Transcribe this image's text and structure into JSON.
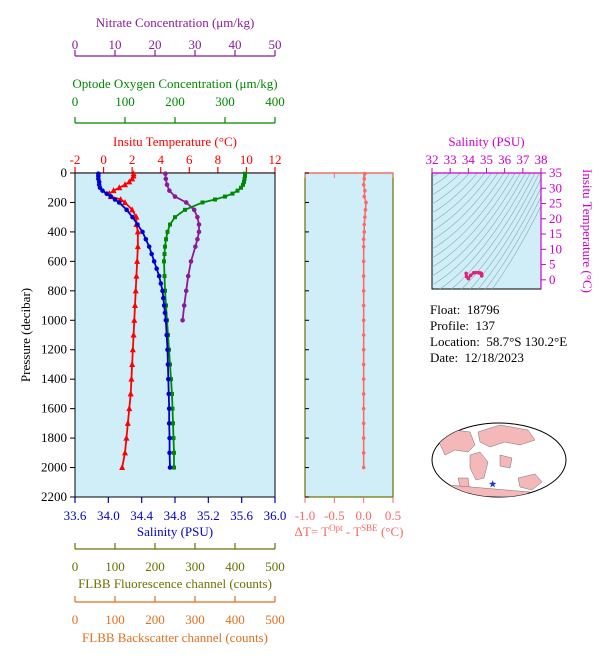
{
  "info": {
    "float_label": "Float:",
    "float_value": "18796",
    "profile_label": "Profile:",
    "profile_value": "137",
    "location_label": "Location:",
    "location_value": "58.7°S  130.2°E",
    "date_label": "Date:",
    "date_value": "12/18/2023"
  },
  "colors": {
    "temperature": "#ff0000",
    "salinity": "#0000cc",
    "oxygen": "#008800",
    "nitrate": "#8b1a9b",
    "deltaT": "#ff6666",
    "fluorescence": "#6b7000",
    "backscatter": "#e07020",
    "ts_axis": "#cc00cc",
    "panel_bg": "#cfeef8"
  },
  "chart_data": [
    {
      "type": "line",
      "panel": "profiles",
      "ylabel": "Pressure (decibar)",
      "ylim": [
        2200,
        0
      ],
      "yticks": [
        0,
        200,
        400,
        600,
        800,
        1000,
        1200,
        1400,
        1600,
        1800,
        2000,
        2200
      ],
      "axes": {
        "temperature": {
          "label": "Insitu Temperature (°C)",
          "range": [
            -2,
            12
          ],
          "ticks": [
            -2,
            0,
            2,
            4,
            6,
            8,
            10,
            12
          ]
        },
        "salinity": {
          "label": "Salinity (PSU)",
          "range": [
            33.6,
            36.0
          ],
          "ticks": [
            "33.6",
            "34.0",
            "34.4",
            "34.8",
            "35.2",
            "35.6",
            "36.0"
          ]
        },
        "oxygen": {
          "label": "Optode Oxygen Concentration (μm/kg)",
          "range": [
            0,
            400
          ],
          "ticks": [
            0,
            100,
            200,
            300,
            400
          ]
        },
        "nitrate": {
          "label": "Nitrate Concentration (μm/kg)",
          "range": [
            0,
            50
          ],
          "ticks": [
            0,
            10,
            20,
            30,
            40,
            50
          ]
        },
        "fluorescence": {
          "label": "FLBB Fluorescence channel (counts)",
          "range": [
            0,
            500
          ],
          "ticks": [
            0,
            100,
            200,
            300,
            400,
            500
          ]
        },
        "backscatter": {
          "label": "FLBB Backscatter channel (counts)",
          "range": [
            0,
            500
          ],
          "ticks": [
            0,
            100,
            200,
            300,
            400,
            500
          ]
        }
      },
      "series": [
        {
          "name": "temperature",
          "axis": "temperature",
          "pressure": [
            5,
            20,
            40,
            60,
            80,
            100,
            120,
            140,
            160,
            180,
            200,
            250,
            300,
            350,
            400,
            500,
            600,
            700,
            800,
            900,
            1000,
            1100,
            1200,
            1300,
            1400,
            1500,
            1600,
            1700,
            1800,
            1900,
            2000
          ],
          "values": [
            2.1,
            2.1,
            2.0,
            1.8,
            1.5,
            1.1,
            0.7,
            0.4,
            0.5,
            1.2,
            1.5,
            2.0,
            2.3,
            2.3,
            2.4,
            2.4,
            2.35,
            2.3,
            2.25,
            2.2,
            2.15,
            2.1,
            2.05,
            2.0,
            1.95,
            1.9,
            1.8,
            1.7,
            1.6,
            1.5,
            1.3
          ]
        },
        {
          "name": "salinity",
          "axis": "salinity",
          "pressure": [
            5,
            20,
            40,
            60,
            80,
            100,
            120,
            140,
            160,
            180,
            200,
            250,
            300,
            350,
            400,
            450,
            500,
            550,
            600,
            650,
            700,
            750,
            800,
            850,
            900,
            950,
            1000,
            1100,
            1200,
            1300,
            1400,
            1500,
            1600,
            1700,
            1800,
            1900,
            2000
          ],
          "values": [
            33.88,
            33.88,
            33.88,
            33.89,
            33.89,
            33.9,
            33.93,
            33.98,
            34.03,
            34.08,
            34.13,
            34.22,
            34.29,
            34.35,
            34.41,
            34.45,
            34.49,
            34.52,
            34.55,
            34.58,
            34.61,
            34.63,
            34.65,
            34.66,
            34.67,
            34.68,
            34.69,
            34.7,
            34.71,
            34.715,
            34.72,
            34.725,
            34.73,
            34.73,
            34.735,
            34.735,
            34.74
          ]
        },
        {
          "name": "oxygen",
          "axis": "oxygen",
          "pressure": [
            5,
            20,
            40,
            60,
            80,
            100,
            120,
            140,
            160,
            180,
            200,
            250,
            300,
            350,
            400,
            450,
            500,
            550,
            600,
            700,
            800,
            900,
            1000,
            1100,
            1200,
            1300,
            1400,
            1500,
            1600,
            1700,
            1800,
            1900,
            2000
          ],
          "values": [
            340,
            340,
            339,
            338,
            336,
            332,
            325,
            315,
            300,
            280,
            255,
            220,
            200,
            190,
            185,
            182,
            180,
            179,
            178,
            179,
            180,
            182,
            184,
            186,
            188,
            190,
            192,
            194,
            195,
            196,
            197,
            198,
            198
          ]
        },
        {
          "name": "nitrate",
          "axis": "nitrate",
          "pressure": [
            5,
            40,
            80,
            120,
            160,
            200,
            250,
            300,
            350,
            400,
            450,
            500,
            600,
            700,
            800,
            900,
            1000
          ],
          "values": [
            22.6,
            22.7,
            23.0,
            23.6,
            25.0,
            27.8,
            29.8,
            30.6,
            31.0,
            31.0,
            30.6,
            30.1,
            29.0,
            28.3,
            27.8,
            27.3,
            26.9
          ]
        },
        {
          "name": "deltaT",
          "axis": "deltaT",
          "pressure": [
            5,
            40,
            80,
            120,
            160,
            200,
            250,
            300,
            350,
            400,
            450,
            500,
            600,
            700,
            800,
            900,
            1000,
            1100,
            1200,
            1300,
            1400,
            1500,
            1600,
            1700,
            1800,
            1900,
            2000
          ],
          "values": [
            0.02,
            0.01,
            0.0,
            0.02,
            0.01,
            0.04,
            0.03,
            0.02,
            0.01,
            0.01,
            0.0,
            0.0,
            0.0,
            0.0,
            0.0,
            0.0,
            0.0,
            0.0,
            0.0,
            0.0,
            0.0,
            0.0,
            0.0,
            0.0,
            0.0,
            0.0,
            0.0
          ]
        }
      ]
    },
    {
      "type": "line",
      "panel": "delta-t",
      "xlabel": "ΔT= T^Opt - T^SBE (°C)",
      "xlabel_parts": {
        "prefix": "ΔT= T",
        "sup1": "Opt",
        "mid": " - T",
        "sup2": "SBE",
        "suffix": " (°C)"
      },
      "xlim": [
        -1.0,
        0.5
      ],
      "xticks": [
        "-1.0",
        "-0.5",
        "0.0",
        "0.5"
      ],
      "ylim": [
        2200,
        0
      ]
    },
    {
      "type": "scatter",
      "panel": "ts-diagram",
      "xlabel": "Salinity (PSU)",
      "ylabel": "Insitu Temperature (°C)",
      "xlim": [
        32,
        38
      ],
      "xticks": [
        32,
        33,
        34,
        35,
        36,
        37,
        38
      ],
      "ylim": [
        -3,
        35
      ],
      "yticks": [
        0,
        5,
        10,
        15,
        20,
        25,
        30,
        35
      ],
      "points_salinity": [
        33.88,
        33.9,
        34.0,
        34.13,
        34.29,
        34.41,
        34.55,
        34.65,
        34.69,
        34.71,
        34.72,
        34.73,
        34.74
      ],
      "points_temperature": [
        2.1,
        1.1,
        0.4,
        1.5,
        2.3,
        2.4,
        2.35,
        2.25,
        2.15,
        2.05,
        1.95,
        1.8,
        1.3
      ]
    },
    {
      "type": "map",
      "panel": "world-map",
      "marker": {
        "lat": -58.7,
        "lon": 130.2,
        "symbol": "star"
      }
    }
  ]
}
